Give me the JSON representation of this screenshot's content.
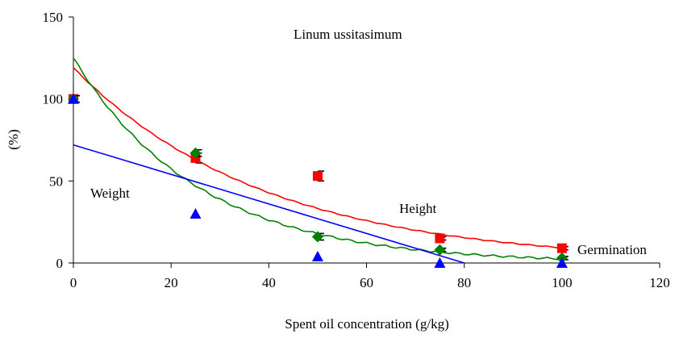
{
  "chart_data": {
    "type": "scatter",
    "title": "",
    "xlabel": "Spent oil concentration (g/kg)",
    "ylabel": "(%)",
    "xlim": [
      0,
      120
    ],
    "ylim": [
      0,
      150
    ],
    "x_ticks": [
      0,
      20,
      40,
      60,
      80,
      100,
      120
    ],
    "y_ticks": [
      0,
      50,
      100,
      150
    ],
    "grid": false,
    "legend": "none",
    "annotations": {
      "species": "Linum ussitasimum",
      "weight": "Weight",
      "height": "Height",
      "germination": "Germination"
    },
    "series": [
      {
        "marker": "square",
        "color": "#ff0000",
        "x": [
          0,
          25,
          50,
          75,
          100
        ],
        "y": [
          100,
          64,
          53,
          15,
          9
        ],
        "err": [
          2,
          3,
          3,
          1,
          1
        ],
        "fit": {
          "color": "#ff0000",
          "form": "exponential",
          "a": 119,
          "b": 0.0255
        }
      },
      {
        "marker": "diamond",
        "color": "#008000",
        "x": [
          0,
          25,
          50,
          75,
          100
        ],
        "y": [
          100,
          67,
          16,
          8,
          3
        ],
        "err": [
          2,
          2,
          2,
          1,
          1
        ],
        "fit": {
          "color": "#008000",
          "form": "exponential",
          "a": 125,
          "b": 0.039
        }
      },
      {
        "marker": "triangle",
        "color": "#0000ff",
        "x": [
          0,
          25,
          50,
          75,
          100
        ],
        "y": [
          100,
          30,
          4,
          0,
          0
        ],
        "err": [
          0,
          0,
          0,
          0,
          0
        ],
        "fit": {
          "color": "#0000ff",
          "form": "linear",
          "intercept": 72,
          "slope": -0.9,
          "xmax": 80
        }
      }
    ]
  }
}
